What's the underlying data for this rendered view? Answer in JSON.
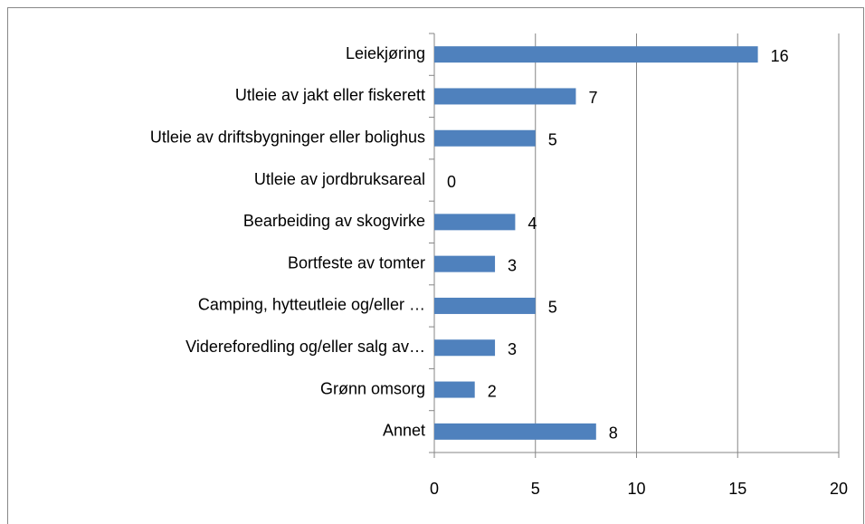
{
  "chart_data": {
    "type": "bar",
    "orientation": "horizontal",
    "categories": [
      "Leiekjøring",
      "Utleie av jakt eller fiskerett",
      "Utleie av driftsbygninger eller bolighus",
      "Utleie av jordbruksareal",
      "Bearbeiding av skogvirke",
      "Bortfeste av tomter",
      "Camping, hytteutleie og/eller …",
      "Videreforedling og/eller salg av…",
      "Grønn omsorg",
      "Annet"
    ],
    "values": [
      16,
      7,
      5,
      0,
      4,
      3,
      5,
      3,
      2,
      8
    ],
    "color": "#4f81bd",
    "xlim": [
      0,
      20
    ],
    "xticks": [
      0,
      5,
      10,
      15,
      20
    ],
    "grid": true
  }
}
